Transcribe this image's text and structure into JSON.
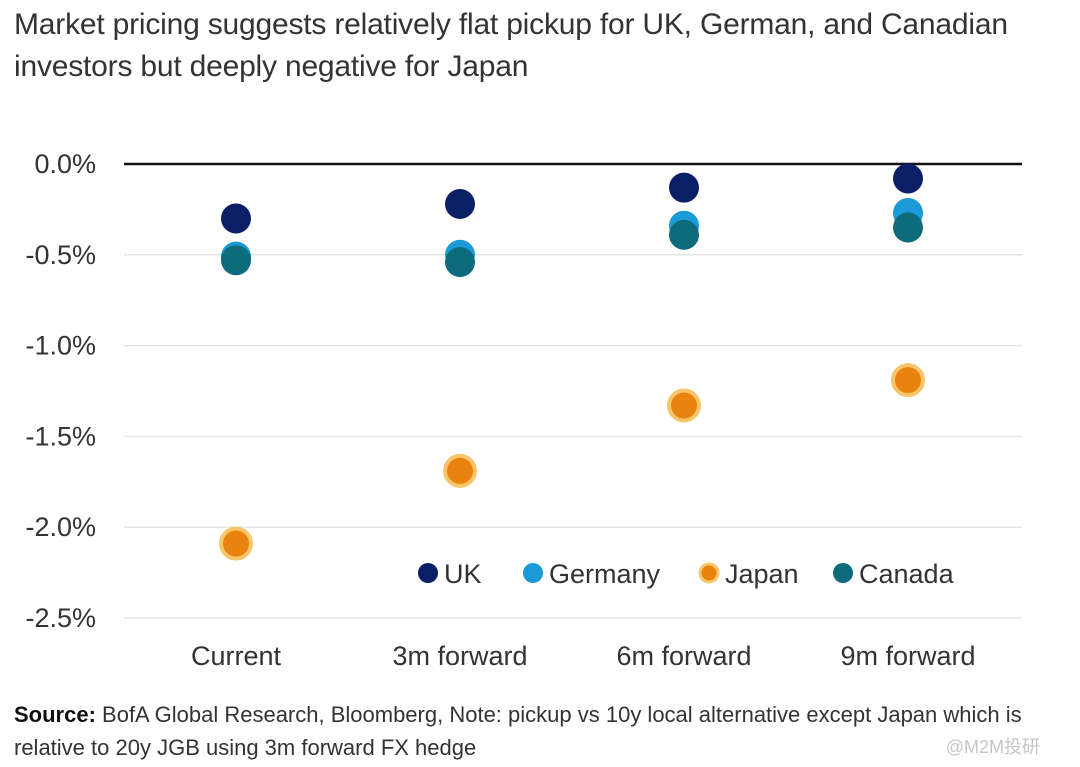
{
  "title": "Market pricing suggests relatively flat pickup for UK, German, and Canadian investors but deeply negative for Japan",
  "footnote": {
    "source_label": "Source:",
    "text": " BofA Global Research, Bloomberg, Note: pickup vs 10y local alternative except Japan which is relative to 20y JGB using 3m forward FX hedge"
  },
  "watermark": "@M2M投研",
  "chart_data": {
    "type": "scatter",
    "title": "Market pricing suggests relatively flat pickup for UK, German, and Canadian investors but deeply negative for Japan",
    "categories": [
      "Current",
      "3m forward",
      "6m forward",
      "9m forward"
    ],
    "ylim": [
      -2.5,
      0.0
    ],
    "yticks": [
      "0.0%",
      "-0.5%",
      "-1.0%",
      "-1.5%",
      "-2.0%",
      "-2.5%"
    ],
    "ytick_values": [
      0.0,
      -0.5,
      -1.0,
      -1.5,
      -2.0,
      -2.5
    ],
    "grid": true,
    "legend": "bottom-right",
    "series": [
      {
        "name": "UK",
        "color": "#0a1f66",
        "values": [
          -0.3,
          -0.22,
          -0.13,
          -0.08
        ]
      },
      {
        "name": "Germany",
        "color": "#1a9ad6",
        "values": [
          -0.51,
          -0.5,
          -0.34,
          -0.27
        ]
      },
      {
        "name": "Japan",
        "color": "#e8830f",
        "values": [
          -2.09,
          -1.69,
          -1.33,
          -1.19
        ]
      },
      {
        "name": "Canada",
        "color": "#0e6b7c",
        "values": [
          -0.53,
          -0.54,
          -0.39,
          -0.35
        ]
      }
    ]
  }
}
